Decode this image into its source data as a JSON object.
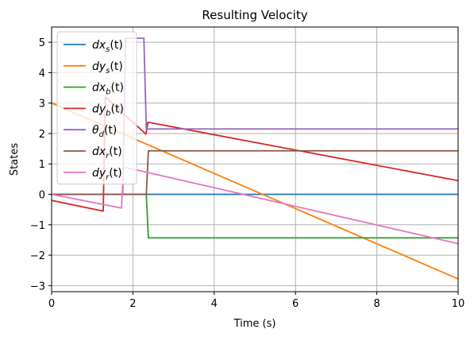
{
  "chart_data": {
    "type": "line",
    "title": "Resulting Velocity",
    "xlabel": "Time (s)",
    "ylabel": "States",
    "xlim": [
      0,
      10
    ],
    "ylim": [
      -3.2,
      5.5
    ],
    "xticks": [
      0,
      2,
      4,
      6,
      8,
      10
    ],
    "yticks": [
      -3,
      -2,
      -1,
      0,
      1,
      2,
      3,
      4,
      5
    ],
    "grid": true,
    "legend_position": "upper-left",
    "series": [
      {
        "name": "dx_s(t)",
        "base": "dx",
        "sub": "s",
        "color": "#1f77b4",
        "x": [
          0,
          10
        ],
        "y": [
          0,
          0
        ]
      },
      {
        "name": "dy_s(t)",
        "base": "dy",
        "sub": "s",
        "color": "#ff7f0e",
        "x": [
          0,
          10
        ],
        "y": [
          3.0,
          -2.78
        ]
      },
      {
        "name": "dx_b(t)",
        "base": "dx",
        "sub": "b",
        "color": "#2ca02c",
        "x": [
          0,
          2.33,
          2.38,
          10
        ],
        "y": [
          0,
          0,
          -1.43,
          -1.43
        ]
      },
      {
        "name": "dy_b(t)",
        "base": "dy",
        "sub": "b",
        "color": "#d62728",
        "x": [
          0,
          1.27,
          1.32,
          2.32,
          2.37,
          10
        ],
        "y": [
          -0.2,
          -0.55,
          3.2,
          1.98,
          2.37,
          0.45
        ]
      },
      {
        "name": "θ_d(t)",
        "base": "θ",
        "sub": "d",
        "color": "#9467bd",
        "x": [
          0,
          1.75,
          1.82,
          2.27,
          2.33,
          10
        ],
        "y": [
          0,
          0,
          5.13,
          5.13,
          2.15,
          2.15
        ]
      },
      {
        "name": "dx_r(t)",
        "base": "dx",
        "sub": "r",
        "color": "#8c564b",
        "x": [
          0,
          2.33,
          2.38,
          10
        ],
        "y": [
          0,
          0,
          1.43,
          1.43
        ]
      },
      {
        "name": "dy_r(t)",
        "base": "dy",
        "sub": "r",
        "color": "#e377c2",
        "x": [
          0,
          1.72,
          1.77,
          10
        ],
        "y": [
          0,
          -0.45,
          0.9,
          -1.62
        ]
      }
    ]
  }
}
